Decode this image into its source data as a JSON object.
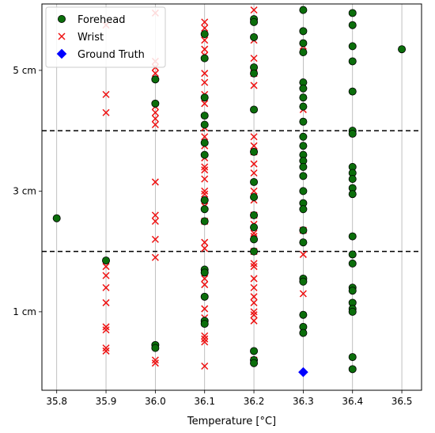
{
  "chart_data": {
    "type": "scatter",
    "title": "",
    "xlabel": "Temperature [°C]",
    "ylabel": "",
    "xlim": [
      35.77,
      36.54
    ],
    "ylim": [
      -0.3,
      6.1
    ],
    "x_ticks": [
      35.8,
      35.9,
      36.0,
      36.1,
      36.2,
      36.3,
      36.4,
      36.5
    ],
    "x_tick_labels": [
      "35.8",
      "35.9",
      "36.0",
      "36.1",
      "36.2",
      "36.3",
      "36.4",
      "36.5"
    ],
    "y_ticks": [
      1,
      3,
      5
    ],
    "y_tick_labels": [
      "1 cm",
      "3 cm",
      "5 cm"
    ],
    "x_grid": true,
    "y_grid": false,
    "reference_lines": [
      {
        "axis": "y",
        "value": 2,
        "style": "dashed",
        "color": "#000000"
      },
      {
        "axis": "y",
        "value": 4,
        "style": "dashed",
        "color": "#000000"
      }
    ],
    "legend": {
      "position": "top-left"
    },
    "series": [
      {
        "name": "Forehead",
        "marker": "circle",
        "color": "#0b6e0b",
        "edge_color": "#000000",
        "points": [
          [
            35.8,
            2.55
          ],
          [
            35.9,
            1.85
          ],
          [
            36.0,
            4.85
          ],
          [
            36.0,
            4.45
          ],
          [
            36.0,
            0.45
          ],
          [
            36.0,
            0.4
          ],
          [
            36.1,
            5.6
          ],
          [
            36.1,
            5.2
          ],
          [
            36.1,
            4.55
          ],
          [
            36.1,
            4.25
          ],
          [
            36.1,
            4.1
          ],
          [
            36.1,
            3.8
          ],
          [
            36.1,
            3.6
          ],
          [
            36.1,
            2.85
          ],
          [
            36.1,
            2.7
          ],
          [
            36.1,
            2.5
          ],
          [
            36.1,
            1.7
          ],
          [
            36.1,
            1.65
          ],
          [
            36.1,
            1.25
          ],
          [
            36.1,
            0.85
          ],
          [
            36.1,
            0.8
          ],
          [
            36.2,
            5.85
          ],
          [
            36.2,
            5.8
          ],
          [
            36.2,
            5.55
          ],
          [
            36.2,
            5.05
          ],
          [
            36.2,
            4.95
          ],
          [
            36.2,
            4.35
          ],
          [
            36.2,
            3.65
          ],
          [
            36.2,
            3.15
          ],
          [
            36.2,
            2.9
          ],
          [
            36.2,
            2.6
          ],
          [
            36.2,
            2.4
          ],
          [
            36.2,
            2.2
          ],
          [
            36.2,
            2.0
          ],
          [
            36.2,
            0.35
          ],
          [
            36.2,
            0.2
          ],
          [
            36.2,
            0.15
          ],
          [
            36.3,
            6.0
          ],
          [
            36.3,
            5.65
          ],
          [
            36.3,
            5.45
          ],
          [
            36.3,
            5.3
          ],
          [
            36.3,
            4.8
          ],
          [
            36.3,
            4.7
          ],
          [
            36.3,
            4.55
          ],
          [
            36.3,
            4.4
          ],
          [
            36.3,
            4.15
          ],
          [
            36.3,
            3.9
          ],
          [
            36.3,
            3.75
          ],
          [
            36.3,
            3.6
          ],
          [
            36.3,
            3.5
          ],
          [
            36.3,
            3.4
          ],
          [
            36.3,
            3.25
          ],
          [
            36.3,
            3.0
          ],
          [
            36.3,
            2.8
          ],
          [
            36.3,
            2.7
          ],
          [
            36.3,
            2.35
          ],
          [
            36.3,
            2.15
          ],
          [
            36.3,
            1.55
          ],
          [
            36.3,
            1.5
          ],
          [
            36.3,
            0.95
          ],
          [
            36.3,
            0.75
          ],
          [
            36.3,
            0.65
          ],
          [
            36.4,
            5.95
          ],
          [
            36.4,
            5.75
          ],
          [
            36.4,
            5.4
          ],
          [
            36.4,
            5.15
          ],
          [
            36.4,
            4.65
          ],
          [
            36.4,
            4.0
          ],
          [
            36.4,
            3.95
          ],
          [
            36.4,
            3.4
          ],
          [
            36.4,
            3.3
          ],
          [
            36.4,
            3.2
          ],
          [
            36.4,
            3.05
          ],
          [
            36.4,
            2.95
          ],
          [
            36.4,
            2.25
          ],
          [
            36.4,
            1.95
          ],
          [
            36.4,
            1.8
          ],
          [
            36.4,
            1.4
          ],
          [
            36.4,
            1.35
          ],
          [
            36.4,
            1.15
          ],
          [
            36.4,
            1.05
          ],
          [
            36.4,
            1.0
          ],
          [
            36.4,
            0.25
          ],
          [
            36.4,
            0.05
          ],
          [
            36.5,
            5.35
          ]
        ]
      },
      {
        "name": "Wrist",
        "marker": "x",
        "color": "#ee1111",
        "points": [
          [
            35.9,
            5.75
          ],
          [
            35.9,
            4.6
          ],
          [
            35.9,
            4.3
          ],
          [
            35.9,
            1.75
          ],
          [
            35.9,
            1.6
          ],
          [
            35.9,
            1.4
          ],
          [
            35.9,
            1.15
          ],
          [
            35.9,
            0.75
          ],
          [
            35.9,
            0.7
          ],
          [
            35.9,
            0.4
          ],
          [
            35.9,
            0.35
          ],
          [
            36.0,
            5.95
          ],
          [
            36.0,
            5.15
          ],
          [
            36.0,
            5.05
          ],
          [
            36.0,
            4.95
          ],
          [
            36.0,
            4.4
          ],
          [
            36.0,
            4.3
          ],
          [
            36.0,
            4.2
          ],
          [
            36.0,
            4.1
          ],
          [
            36.0,
            3.15
          ],
          [
            36.0,
            2.6
          ],
          [
            36.0,
            2.5
          ],
          [
            36.0,
            2.2
          ],
          [
            36.0,
            1.9
          ],
          [
            36.0,
            0.2
          ],
          [
            36.0,
            0.15
          ],
          [
            36.1,
            5.8
          ],
          [
            36.1,
            5.7
          ],
          [
            36.1,
            5.5
          ],
          [
            36.1,
            5.35
          ],
          [
            36.1,
            5.25
          ],
          [
            36.1,
            4.95
          ],
          [
            36.1,
            4.8
          ],
          [
            36.1,
            4.6
          ],
          [
            36.1,
            4.45
          ],
          [
            36.1,
            4.05
          ],
          [
            36.1,
            3.9
          ],
          [
            36.1,
            3.75
          ],
          [
            36.1,
            3.55
          ],
          [
            36.1,
            3.4
          ],
          [
            36.1,
            3.35
          ],
          [
            36.1,
            3.2
          ],
          [
            36.1,
            3.0
          ],
          [
            36.1,
            2.95
          ],
          [
            36.1,
            2.75
          ],
          [
            36.1,
            2.5
          ],
          [
            36.1,
            2.15
          ],
          [
            36.1,
            2.05
          ],
          [
            36.1,
            1.55
          ],
          [
            36.1,
            1.45
          ],
          [
            36.1,
            1.05
          ],
          [
            36.1,
            0.9
          ],
          [
            36.1,
            0.6
          ],
          [
            36.1,
            0.55
          ],
          [
            36.1,
            0.5
          ],
          [
            36.1,
            0.1
          ],
          [
            36.2,
            6.0
          ],
          [
            36.2,
            5.5
          ],
          [
            36.2,
            5.2
          ],
          [
            36.2,
            4.95
          ],
          [
            36.2,
            4.75
          ],
          [
            36.2,
            3.9
          ],
          [
            36.2,
            3.75
          ],
          [
            36.2,
            3.65
          ],
          [
            36.2,
            3.45
          ],
          [
            36.2,
            3.3
          ],
          [
            36.2,
            3.0
          ],
          [
            36.2,
            2.85
          ],
          [
            36.2,
            2.6
          ],
          [
            36.2,
            2.45
          ],
          [
            36.2,
            2.3
          ],
          [
            36.2,
            2.25
          ],
          [
            36.2,
            2.0
          ],
          [
            36.2,
            1.8
          ],
          [
            36.2,
            1.75
          ],
          [
            36.2,
            1.55
          ],
          [
            36.2,
            1.4
          ],
          [
            36.2,
            1.25
          ],
          [
            36.2,
            1.15
          ],
          [
            36.2,
            1.0
          ],
          [
            36.2,
            0.95
          ],
          [
            36.2,
            0.85
          ],
          [
            36.2,
            0.2
          ],
          [
            36.3,
            5.4
          ],
          [
            36.3,
            4.35
          ],
          [
            36.3,
            2.35
          ],
          [
            36.3,
            1.95
          ],
          [
            36.3,
            1.3
          ]
        ]
      },
      {
        "name": "Ground Truth",
        "marker": "diamond",
        "color": "#0000ff",
        "points": [
          [
            36.3,
            0.0
          ]
        ]
      }
    ]
  }
}
